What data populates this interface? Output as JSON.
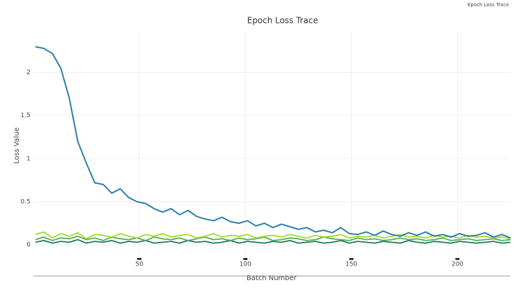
{
  "window_title": "Epoch Loss Trace",
  "chart_data": {
    "type": "line",
    "title": "Epoch Loss Trace",
    "x_label": "Batch Number",
    "y_label": "Loss Value",
    "x": [
      1,
      5,
      9,
      13,
      17,
      21,
      25,
      29,
      33,
      37,
      41,
      45,
      49,
      53,
      57,
      61,
      65,
      69,
      73,
      77,
      81,
      85,
      89,
      93,
      97,
      101,
      105,
      109,
      113,
      117,
      121,
      125,
      129,
      133,
      137,
      141,
      145,
      149,
      153,
      157,
      161,
      165,
      169,
      173,
      177,
      181,
      185,
      189,
      193,
      197,
      201,
      205,
      209,
      213,
      217,
      221,
      225
    ],
    "series": [
      {
        "color": "#2a7fa8",
        "values": [
          2.3,
          2.28,
          2.22,
          2.05,
          1.7,
          1.2,
          0.95,
          0.72,
          0.7,
          0.6,
          0.65,
          0.55,
          0.5,
          0.48,
          0.42,
          0.38,
          0.42,
          0.35,
          0.4,
          0.33,
          0.3,
          0.28,
          0.32,
          0.27,
          0.25,
          0.28,
          0.22,
          0.25,
          0.2,
          0.24,
          0.21,
          0.18,
          0.2,
          0.15,
          0.17,
          0.14,
          0.2,
          0.13,
          0.12,
          0.15,
          0.11,
          0.16,
          0.12,
          0.1,
          0.14,
          0.11,
          0.15,
          0.1,
          0.12,
          0.09,
          0.13,
          0.1,
          0.11,
          0.14,
          0.09,
          0.12,
          0.08
        ]
      },
      {
        "color": "#a6d82b",
        "values": [
          0.12,
          0.15,
          0.08,
          0.13,
          0.1,
          0.14,
          0.07,
          0.12,
          0.11,
          0.09,
          0.13,
          0.1,
          0.08,
          0.12,
          0.1,
          0.13,
          0.09,
          0.11,
          0.12,
          0.08,
          0.1,
          0.13,
          0.09,
          0.11,
          0.1,
          0.12,
          0.08,
          0.1,
          0.11,
          0.09,
          0.12,
          0.1,
          0.08,
          0.11,
          0.09,
          0.1,
          0.12,
          0.08,
          0.1,
          0.09,
          0.11,
          0.08,
          0.1,
          0.12,
          0.09,
          0.1,
          0.08,
          0.11,
          0.09,
          0.1,
          0.08,
          0.11,
          0.09,
          0.1,
          0.08,
          0.09,
          0.07
        ]
      },
      {
        "color": "#4caf50",
        "values": [
          0.06,
          0.09,
          0.05,
          0.08,
          0.07,
          0.1,
          0.06,
          0.08,
          0.05,
          0.09,
          0.07,
          0.06,
          0.08,
          0.05,
          0.09,
          0.07,
          0.06,
          0.08,
          0.05,
          0.07,
          0.09,
          0.06,
          0.07,
          0.05,
          0.08,
          0.06,
          0.07,
          0.09,
          0.05,
          0.06,
          0.08,
          0.07,
          0.05,
          0.06,
          0.09,
          0.07,
          0.06,
          0.05,
          0.08,
          0.06,
          0.07,
          0.05,
          0.06,
          0.08,
          0.06,
          0.07,
          0.05,
          0.06,
          0.08,
          0.05,
          0.06,
          0.07,
          0.05,
          0.06,
          0.07,
          0.05,
          0.06
        ]
      },
      {
        "color": "#1b7a5a",
        "values": [
          0.03,
          0.05,
          0.02,
          0.04,
          0.03,
          0.06,
          0.02,
          0.04,
          0.03,
          0.05,
          0.02,
          0.04,
          0.03,
          0.05,
          0.02,
          0.03,
          0.04,
          0.02,
          0.05,
          0.03,
          0.04,
          0.02,
          0.03,
          0.05,
          0.02,
          0.04,
          0.03,
          0.02,
          0.04,
          0.03,
          0.05,
          0.02,
          0.03,
          0.04,
          0.02,
          0.03,
          0.05,
          0.02,
          0.04,
          0.03,
          0.02,
          0.04,
          0.03,
          0.02,
          0.05,
          0.03,
          0.02,
          0.04,
          0.03,
          0.02,
          0.04,
          0.03,
          0.02,
          0.03,
          0.04,
          0.02,
          0.03
        ]
      }
    ],
    "xlim": [
      0,
      225
    ],
    "ylim": [
      -0.12,
      2.48
    ],
    "xticks": [
      50,
      100,
      150,
      200
    ],
    "yticks": [
      0,
      0.5,
      1,
      1.5,
      2
    ],
    "grid": true
  }
}
